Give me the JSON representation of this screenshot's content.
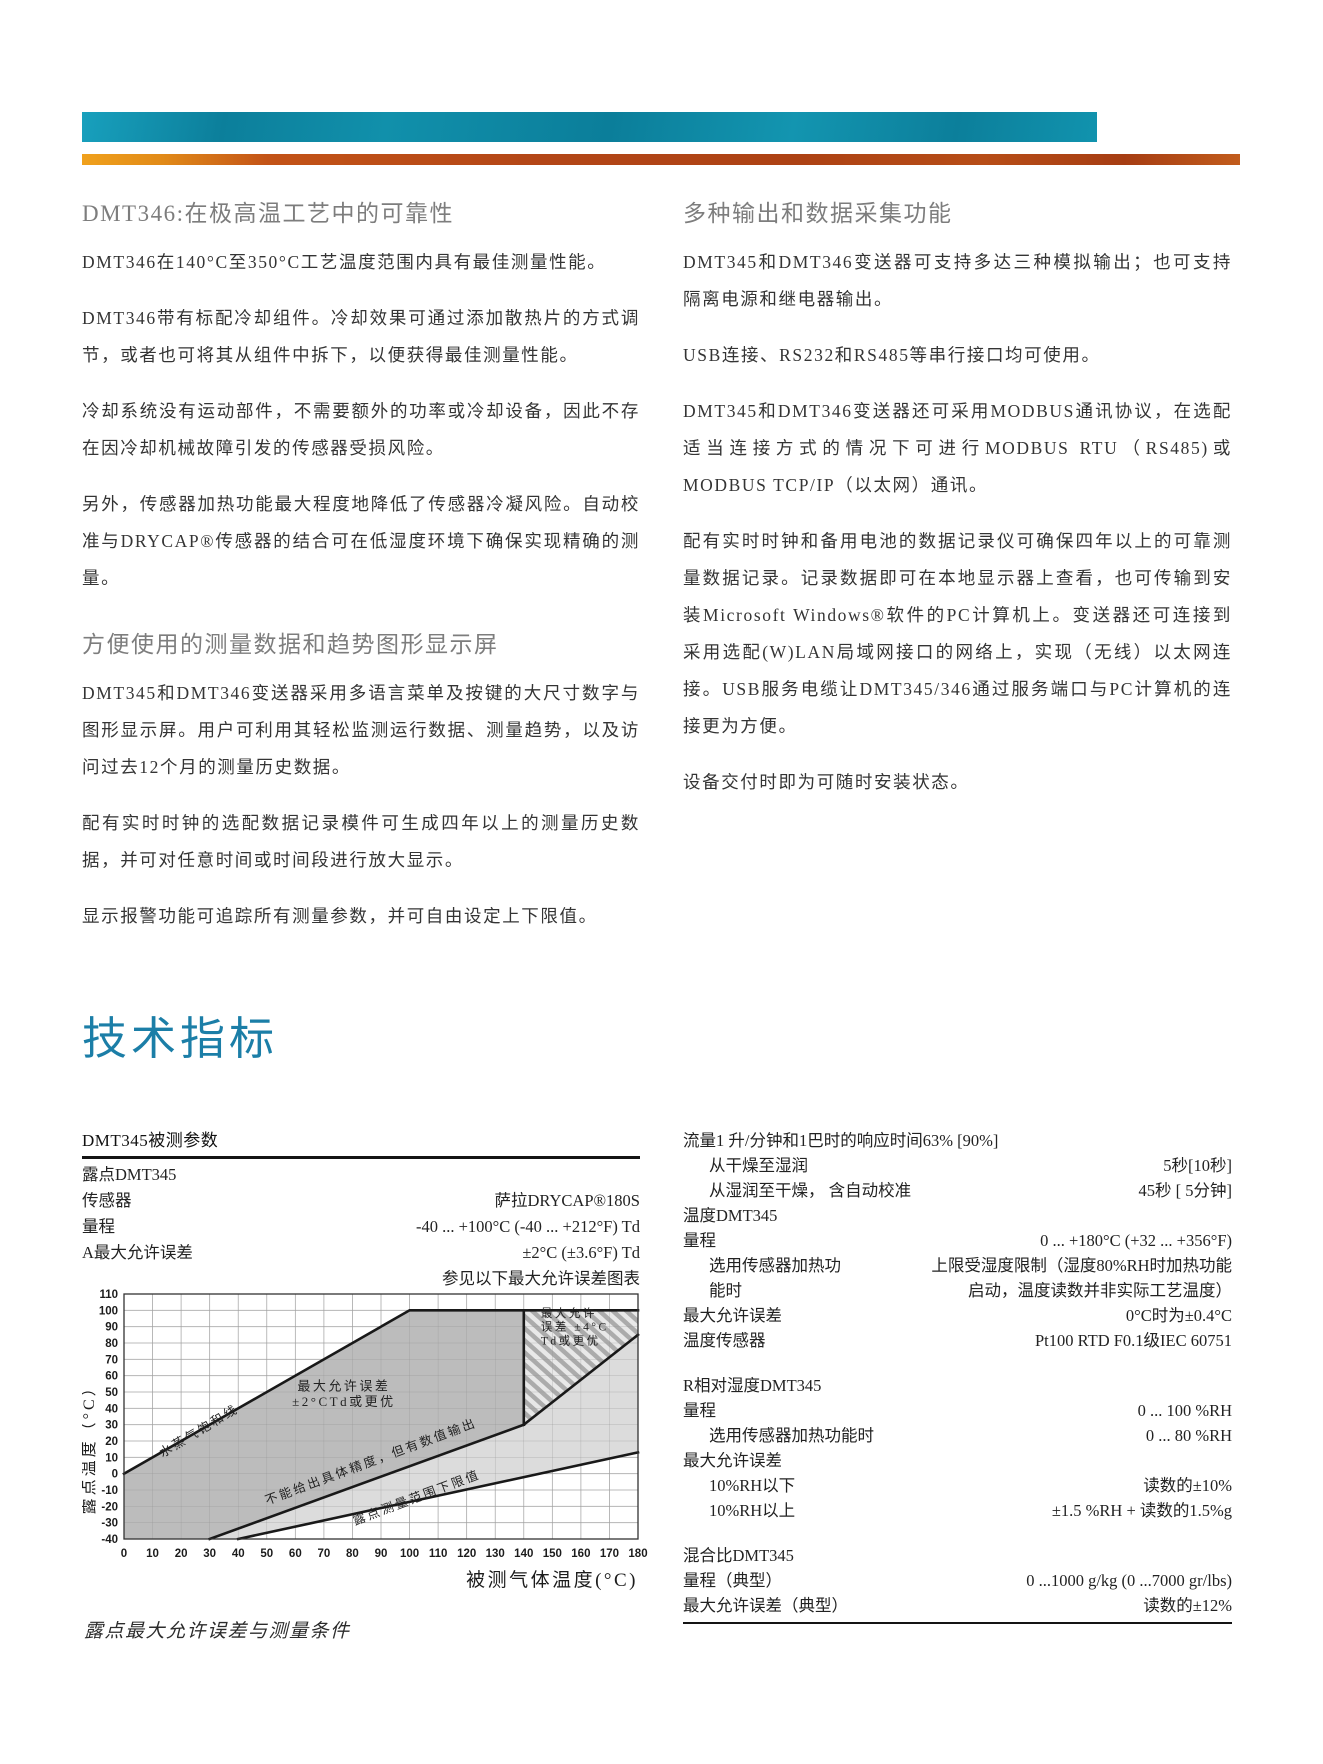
{
  "banner": {
    "teal_color": "#0d89a5",
    "orange_color": "#b34617"
  },
  "left_column": {
    "sections": [
      {
        "heading": "DMT346:在极高温工艺中的可靠性",
        "paragraphs": [
          "DMT346在140°C至350°C工艺温度范围内具有最佳测量性能。",
          "DMT346带有标配冷却组件。冷却效果可通过添加散热片的方式调节，或者也可将其从组件中拆下，以便获得最佳测量性能。",
          "冷却系统没有运动部件，不需要额外的功率或冷却设备，因此不存在因冷却机械故障引发的传感器受损风险。",
          "另外，传感器加热功能最大程度地降低了传感器冷凝风险。自动校准与DRYCAP®传感器的结合可在低湿度环境下确保实现精确的测量。"
        ]
      },
      {
        "heading": "方便使用的测量数据和趋势图形显示屏",
        "paragraphs": [
          "DMT345和DMT346变送器采用多语言菜单及按键的大尺寸数字与图形显示屏。用户可利用其轻松监测运行数据、测量趋势，以及访问过去12个月的测量历史数据。",
          "配有实时时钟的选配数据记录模件可生成四年以上的测量历史数据，并可对任意时间或时间段进行放大显示。",
          "显示报警功能可追踪所有测量参数，并可自由设定上下限值。"
        ]
      }
    ]
  },
  "right_column": {
    "sections": [
      {
        "heading": "多种输出和数据采集功能",
        "paragraphs": [
          "DMT345和DMT346变送器可支持多达三种模拟输出；也可支持隔离电源和继电器输出。",
          "USB连接、RS232和RS485等串行接口均可使用。",
          "DMT345和DMT346变送器还可采用MODBUS通讯协议，在选配适当连接方式的情况下可进行MODBUS RTU（RS485)或MODBUS TCP/IP（以太网）通讯。",
          "配有实时时钟和备用电池的数据记录仪可确保四年以上的可靠测量数据记录。记录数据即可在本地显示器上查看，也可传输到安装Microsoft Windows®软件的PC计算机上。变送器还可连接到采用选配(W)LAN局域网接口的网络上，实现（无线）以太网连接。USB服务电缆让DMT345/346通过服务端口与PC计算机的连接更为方便。",
          "设备交付时即为可随时安装状态。"
        ]
      }
    ]
  },
  "tech_title": "技术指标",
  "left_table": {
    "header": "DMT345被测参数",
    "rows": [
      {
        "label": "露点DMT345",
        "value": "",
        "indent": false
      },
      {
        "label": "传感器",
        "value": "萨拉DRYCAP®180S",
        "indent": false
      },
      {
        "label": "量程",
        "value": "-40 ... +100°C (-40 ... +212°F) Td",
        "indent": false
      },
      {
        "label": "A最大允许误差",
        "value": "±2°C (±3.6°F) Td",
        "indent": false
      },
      {
        "label": "",
        "value": "参见以下最大允许误差图表",
        "indent": false
      }
    ]
  },
  "right_table": {
    "rows": [
      {
        "label": "流量1 升/分钟和1巴时的响应时间63% [90%]",
        "value": "",
        "indent": false
      },
      {
        "label": "从干燥至湿润",
        "value": "5秒[10秒]",
        "indent": true
      },
      {
        "label": "从湿润至干燥， 含自动校准",
        "value": "45秒 [ 5分钟]",
        "indent": true
      },
      {
        "label": "温度DMT345",
        "value": "",
        "indent": false
      },
      {
        "label": "量程",
        "value": "0 ... +180°C (+32 ... +356°F)",
        "indent": false
      },
      {
        "label": "选用传感器加热功",
        "value": "上限受湿度限制（湿度80%RH时加热功能",
        "indent": true
      },
      {
        "label": "能时",
        "value": "启动，温度读数并非实际工艺温度）",
        "indent": true
      },
      {
        "label": "最大允许误差",
        "value": "0°C时为±0.4°C",
        "indent": false
      },
      {
        "label": "温度传感器",
        "value": "Pt100 RTD F0.1级IEC 60751",
        "indent": false
      },
      {
        "label": "R相对湿度DMT345",
        "value": "",
        "indent": false,
        "gap": true
      },
      {
        "label": "量程",
        "value": "0 ... 100 %RH",
        "indent": false
      },
      {
        "label": "选用传感器加热功能时",
        "value": "0 ... 80 %RH",
        "indent": true
      },
      {
        "label": "最大允许误差",
        "value": "",
        "indent": false
      },
      {
        "label": "10%RH以下",
        "value": "读数的±10%",
        "indent": true
      },
      {
        "label": "10%RH以上",
        "value": "±1.5 %RH + 读数的1.5%g",
        "indent": true
      },
      {
        "label": "混合比DMT345",
        "value": "",
        "indent": false,
        "gap": true
      },
      {
        "label": "量程（典型）",
        "value": "0 ...1000 g/kg (0 ...7000 gr/lbs)",
        "indent": false
      },
      {
        "label": "最大允许误差（典型）",
        "value": "读数的±12%",
        "indent": false
      }
    ]
  },
  "chart_caption": "露点最大允许误差与测量条件",
  "chart_data": {
    "type": "area",
    "title": "露点最大允许误差与测量条件",
    "xlabel": "被测气体温度(°C)",
    "ylabel": "露点温度（°C）",
    "xlim": [
      0,
      180
    ],
    "ylim": [
      -40,
      110
    ],
    "xticks": [
      0,
      10,
      20,
      30,
      40,
      50,
      60,
      70,
      80,
      90,
      100,
      110,
      120,
      130,
      140,
      150,
      160,
      170,
      180
    ],
    "yticks": [
      110,
      100,
      90,
      80,
      70,
      60,
      50,
      40,
      30,
      20,
      10,
      0,
      -10,
      -20,
      -30,
      -40
    ],
    "grid": true,
    "regions": [
      {
        "name": "accuracy-2c-region",
        "fill": "#bcbcbc",
        "points": [
          [
            0,
            0
          ],
          [
            100,
            100
          ],
          [
            140,
            100
          ],
          [
            140,
            30
          ],
          [
            30,
            -40
          ],
          [
            0,
            -40
          ]
        ]
      },
      {
        "name": "numeric-output-only-region",
        "fill": "#dcdcdc",
        "points": [
          [
            30,
            -40
          ],
          [
            140,
            30
          ],
          [
            180,
            85
          ],
          [
            180,
            13
          ],
          [
            40,
            -40
          ]
        ]
      },
      {
        "name": "accuracy-4c-region",
        "fill": "hatch",
        "points": [
          [
            140,
            100
          ],
          [
            180,
            100
          ],
          [
            180,
            85
          ],
          [
            140,
            30
          ]
        ]
      }
    ],
    "lines": [
      {
        "name": "water-vapor-saturation-line",
        "points": [
          [
            0,
            0
          ],
          [
            100,
            100
          ],
          [
            180,
            100
          ]
        ]
      },
      {
        "name": "divider-140c",
        "points": [
          [
            140,
            100
          ],
          [
            140,
            30
          ]
        ]
      },
      {
        "name": "accuracy-4c-lower-bound",
        "points": [
          [
            140,
            30
          ],
          [
            180,
            85
          ]
        ]
      },
      {
        "name": "accuracy-2c-lower-bound",
        "points": [
          [
            30,
            -40
          ],
          [
            140,
            30
          ]
        ]
      },
      {
        "name": "dewpoint-range-lower-limit",
        "points": [
          [
            40,
            -40
          ],
          [
            180,
            13
          ]
        ]
      }
    ],
    "annotations": [
      {
        "text": "水蒸气饱和线",
        "x": 27,
        "y": 24,
        "rotate": -31,
        "size": 12.5,
        "anchor": "middle"
      },
      {
        "text": "最大允许误差\n±2°CTd或更优",
        "x": 77,
        "y": 51,
        "rotate": 0,
        "size": 13,
        "anchor": "middle"
      },
      {
        "text": "最大允许\n误差 ±4°C\nTd或更优",
        "x": 146,
        "y": 96,
        "rotate": 0,
        "size": 11.5,
        "anchor": "start"
      },
      {
        "text": "不能给出具体精度，但有数值输出",
        "x": 87,
        "y": 5,
        "rotate": -20.5,
        "size": 12.5,
        "anchor": "middle"
      },
      {
        "text": "露点测量范围下限值",
        "x": 103,
        "y": -17,
        "rotate": -20.5,
        "size": 12.5,
        "anchor": "middle"
      }
    ]
  }
}
